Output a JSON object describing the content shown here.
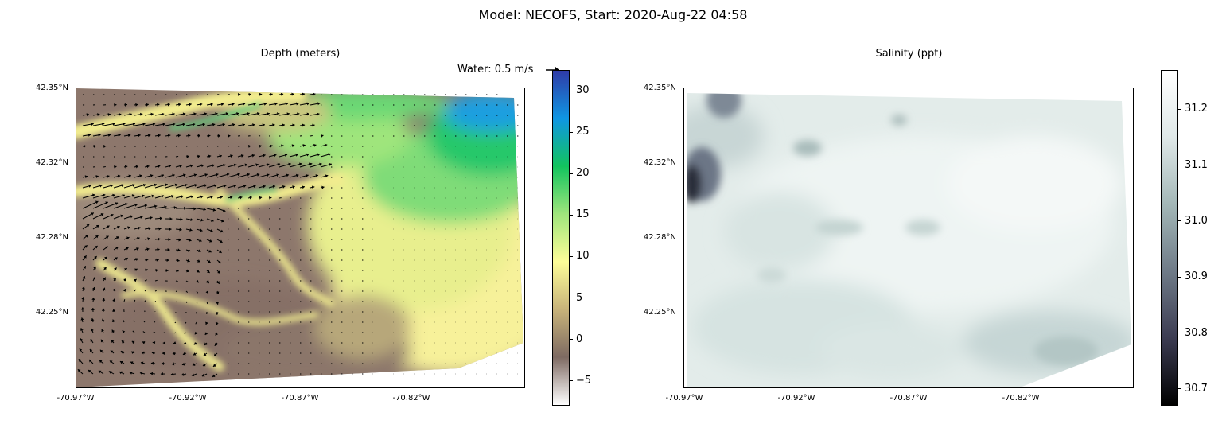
{
  "suptitle": "Model: NECOFS, Start: 2020-Aug-22 04:58",
  "chart_data": [
    {
      "type": "heatmap",
      "title": "Depth (meters)",
      "quiver_key": "Water: 0.5 m/s",
      "lat_ticks": [
        "42.35°N",
        "42.32°N",
        "42.28°N",
        "42.25°N"
      ],
      "lon_ticks": [
        "-70.97°W",
        "-70.92°W",
        "-70.87°W",
        "-70.82°W"
      ],
      "colorbar": {
        "ticks": [
          30,
          25,
          20,
          15,
          10,
          5,
          0,
          -5
        ],
        "vmin": -8,
        "vmax": 32.5,
        "cmap": "terrain"
      },
      "colors": [
        "#ffffff",
        "#7e6a62",
        "#c8b37a",
        "#fdfd98",
        "#9fe57c",
        "#12c45e",
        "#0f96e3",
        "#2f3ba7"
      ]
    },
    {
      "type": "heatmap",
      "title": "Salinity (ppt)",
      "lat_ticks": [
        "42.35°N",
        "42.32°N",
        "42.28°N",
        "42.25°N"
      ],
      "lon_ticks": [
        "-70.97°W",
        "-70.92°W",
        "-70.87°W",
        "-70.82°W"
      ],
      "colorbar": {
        "ticks": [
          31.2,
          31.1,
          31.0,
          30.9,
          30.8,
          30.7
        ],
        "vmin": 30.67,
        "vmax": 31.27,
        "cmap": "bone"
      },
      "colors": [
        "#000000",
        "#3c3c52",
        "#6f7b88",
        "#a3b7b7",
        "#dfe8e8",
        "#ffffff"
      ]
    }
  ]
}
